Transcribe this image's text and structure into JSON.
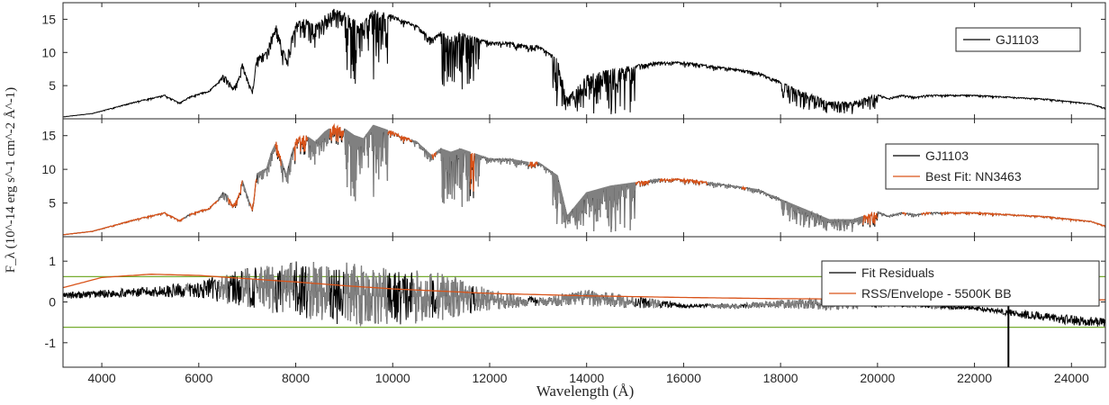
{
  "chart_data": {
    "type": "line",
    "ylabel": "F_λ (10^-14 erg s^-1 cm^-2 Å^-1)",
    "xlabel": "Wavelength (Å)",
    "xlim": [
      3200,
      24700
    ],
    "x_ticks": [
      4000,
      6000,
      8000,
      10000,
      12000,
      14000,
      16000,
      18000,
      20000,
      22000,
      24000
    ],
    "x_tick_labels": [
      "4000",
      "6000",
      "8000",
      "10000",
      "12000",
      "14000",
      "16000",
      "18000",
      "20000",
      "22000",
      "24000"
    ],
    "colors": {
      "observed": "#000000",
      "fit": "#d95319",
      "masked": "#808080",
      "threshold": "#77ac30",
      "axes": "#262626"
    },
    "panels": [
      {
        "id": "spectrum",
        "ylim": [
          0,
          17.5
        ],
        "y_ticks": [
          5,
          10,
          15
        ],
        "y_tick_labels": [
          "5",
          "10",
          "15"
        ],
        "legend": {
          "placement": "top-right",
          "entries": [
            {
              "label": "GJ1103",
              "color": "#000000"
            }
          ]
        },
        "series": [
          {
            "name": "GJ1103",
            "color": "#000000",
            "x": [
              3200,
              3800,
              4300,
              4700,
              5000,
              5300,
              5600,
              5800,
              6000,
              6200,
              6400,
              6500,
              6600,
              6700,
              6800,
              6900,
              7000,
              7100,
              7200,
              7400,
              7500,
              7600,
              7700,
              7800,
              8000,
              8200,
              8400,
              8600,
              8800,
              9000,
              9200,
              9400,
              9600,
              9800,
              10000,
              10500,
              10800,
              11000,
              11200,
              11400,
              11600,
              11800,
              12000,
              12400,
              12800,
              13000,
              13200,
              13400,
              13600,
              14000,
              14500,
              15000,
              15500,
              16000,
              16500,
              17000,
              17500,
              18000,
              18500,
              19000,
              19500,
              20000,
              20200,
              20500,
              20800,
              21000,
              21500,
              22000,
              22500,
              23000,
              23500,
              24000,
              24400,
              24700
            ],
            "y": [
              0.3,
              0.8,
              1.8,
              2.6,
              3.1,
              3.6,
              2.4,
              3.3,
              3.8,
              4.2,
              5.5,
              6.6,
              6.1,
              4.6,
              5.8,
              8.4,
              6.1,
              4.1,
              9.4,
              10.2,
              12.6,
              14.1,
              11.6,
              9.1,
              14.6,
              15.1,
              14.1,
              15.6,
              16.6,
              16.1,
              15.1,
              14.6,
              16.6,
              16.1,
              15.6,
              14.1,
              12.1,
              13.1,
              12.6,
              13.1,
              12.6,
              12.1,
              11.6,
              11.6,
              11.1,
              11.1,
              10.1,
              9.1,
              3.1,
              6.6,
              7.6,
              8.1,
              8.6,
              8.6,
              8.1,
              7.6,
              7.1,
              5.6,
              4.1,
              2.6,
              2.6,
              3.8,
              3.1,
              3.6,
              3.3,
              3.6,
              3.6,
              3.6,
              3.4,
              3.2,
              3.0,
              2.6,
              2.3,
              1.6
            ]
          }
        ]
      },
      {
        "id": "fit",
        "ylim": [
          0,
          17.5
        ],
        "y_ticks": [
          5,
          10,
          15
        ],
        "y_tick_labels": [
          "5",
          "10",
          "15"
        ],
        "legend": {
          "placement": "top-right",
          "entries": [
            {
              "label": "GJ1103",
              "color": "#000000"
            },
            {
              "label": "Best Fit: NN3463",
              "color": "#d95319"
            }
          ]
        },
        "series": [
          {
            "name": "GJ1103",
            "color": "#000000",
            "same_as": "spectrum"
          },
          {
            "name": "Best Fit: NN3463",
            "color": "#d95319",
            "same_as": "spectrum"
          }
        ]
      },
      {
        "id": "residuals",
        "ylim": [
          -1.6,
          1.6
        ],
        "y_ticks": [
          -1,
          0,
          1
        ],
        "y_tick_labels": [
          "-1",
          "0",
          "1"
        ],
        "thresholds": [
          0.62,
          -0.62
        ],
        "legend": {
          "placement": "top-right",
          "entries": [
            {
              "label": "Fit Residuals",
              "color": "#000000"
            },
            {
              "label": "RSS/Envelope - 5500K BB",
              "color": "#d95319"
            }
          ]
        },
        "series": [
          {
            "name": "Fit Residuals",
            "color": "#000000",
            "x": [
              3200,
              4000,
              5000,
              6000,
              7000,
              8000,
              9000,
              10000,
              11000,
              12000,
              13000,
              14000,
              15000,
              16000,
              17000,
              18000,
              19000,
              20000,
              21000,
              22000,
              23000,
              24000,
              24700
            ],
            "y": [
              0.15,
              0.2,
              0.25,
              0.3,
              0.35,
              0.3,
              0.2,
              0.1,
              0.15,
              0.05,
              0.0,
              0.1,
              0.0,
              -0.1,
              -0.1,
              -0.05,
              -0.05,
              0.0,
              -0.1,
              -0.15,
              -0.3,
              -0.45,
              -0.5
            ],
            "amplitude": [
              0.08,
              0.1,
              0.12,
              0.2,
              0.5,
              0.7,
              0.8,
              0.7,
              0.6,
              0.25,
              0.1,
              0.2,
              0.15,
              0.05,
              0.05,
              0.1,
              0.15,
              0.15,
              0.05,
              0.05,
              0.1,
              0.12,
              0.12
            ]
          },
          {
            "name": "RSS/Envelope - 5500K BB",
            "color": "#d95319",
            "x": [
              3200,
              4000,
              5000,
              6000,
              7000,
              8000,
              9000,
              10000,
              12000,
              14000,
              16000,
              18000,
              20000,
              22000,
              24000,
              24700
            ],
            "y": [
              0.35,
              0.6,
              0.68,
              0.65,
              0.57,
              0.49,
              0.4,
              0.32,
              0.21,
              0.15,
              0.11,
              0.08,
              0.07,
              0.06,
              0.05,
              0.05
            ]
          }
        ]
      }
    ]
  }
}
